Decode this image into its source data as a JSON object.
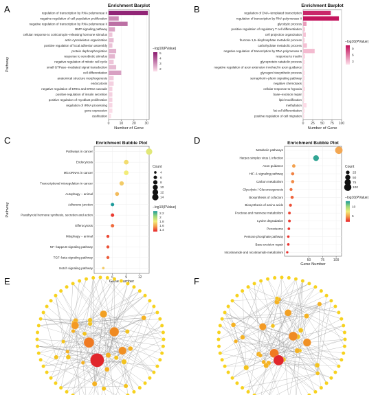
{
  "figure": {
    "panel_letters": [
      "A",
      "B",
      "C",
      "D",
      "E",
      "F"
    ]
  },
  "chart_data": [
    {
      "panel": "A",
      "type": "bar",
      "title": "Enrichment Barplot",
      "xlabel": "Number of Gene",
      "ylabel": "Pathway",
      "xlim": [
        0,
        32
      ],
      "xticks": [
        0,
        10,
        20,
        30
      ],
      "legend_title": "−log10(PValue)",
      "legend_ticks": [
        5,
        4,
        3,
        2
      ],
      "legend_range": [
        1.5,
        5.2
      ],
      "colors": {
        "low": "#fde0ea",
        "high": "#8b1a6f"
      },
      "categories": [
        "regulation of transcription by RNA polymerase II",
        "negative regulation of cell population proliferation",
        "negative regulation of transcription by RNA polymerase II",
        "BMP signaling pathway",
        "cellular response to corticotropin−releasing hormone stimulus",
        "actin cytoskeleton organization",
        "positive regulation of focal adhesion assembly",
        "protein dephosphorylation",
        "response to xenobiotic stimulus",
        "negative regulation of mitotic cell cycle",
        "small GTPase−mediated signal transduction",
        "cell differentiation",
        "anatomical structure morphogenesis",
        "endocytosis",
        "negative regulation of ERK1 and ERK2 cascade",
        "positive regulation of insulin secretion",
        "positive regulation of myoblast proliferation",
        "regulation of rRNA processing",
        "gene expression",
        "ossification"
      ],
      "values": [
        31,
        8,
        15,
        5,
        3,
        4,
        3,
        6,
        5,
        4,
        6,
        10,
        4,
        4,
        3,
        3,
        3,
        3,
        3,
        2
      ],
      "color_values": [
        5.0,
        3.1,
        3.6,
        2.6,
        2.0,
        2.2,
        2.1,
        2.4,
        2.3,
        2.0,
        2.2,
        2.7,
        1.9,
        1.8,
        1.8,
        1.8,
        1.8,
        1.7,
        1.6,
        1.5
      ]
    },
    {
      "panel": "B",
      "type": "bar",
      "title": "Enrichment Barplot",
      "xlabel": "Number of Gene",
      "ylabel": "",
      "xlim": [
        0,
        100
      ],
      "xticks": [
        0,
        25,
        50,
        75,
        100
      ],
      "legend_title": "−log10(PValue)",
      "legend_ticks": [
        9,
        6,
        3
      ],
      "legend_range": [
        1.5,
        10.5
      ],
      "colors": {
        "low": "#fde0ea",
        "high": "#c2105a"
      },
      "categories": [
        "regulation of DNA−templated transcription",
        "regulation of transcription by RNA polymerase II",
        "glycolytic process",
        "positive regulation of regulatory T cell differentiation",
        "cell projection organization",
        "fructose 1,6−bisphosphate metabolic process",
        "carbohydrate metabolic process",
        "negative regulation of transcription by RNA polymerase II",
        "response to insulin",
        "glycoprotein catabolic process",
        "negative regulation of axon extension involved in axon guidance",
        "glycogen biosynthetic process",
        "semaphorin−plexin signaling pathway",
        "negative chemotaxis",
        "cellular response to hypoxia",
        "base−excision repair",
        "lipid modification",
        "methylation",
        "fat cell differentiation",
        "positive regulation of cell migration"
      ],
      "values": [
        72,
        93,
        9,
        5,
        7,
        4,
        10,
        30,
        5,
        4,
        3,
        4,
        4,
        3,
        5,
        3,
        3,
        9,
        4,
        3
      ],
      "color_values": [
        9.5,
        10.3,
        4.5,
        2.6,
        2.8,
        2.4,
        2.9,
        3.1,
        2.0,
        2.0,
        1.9,
        1.9,
        1.9,
        1.8,
        1.8,
        1.8,
        1.7,
        1.7,
        1.6,
        1.6
      ]
    },
    {
      "panel": "C",
      "type": "scatter",
      "title": "Enrichment Bubble Plot",
      "xlabel": "Gene Number",
      "ylabel": "Pathway",
      "xlim": [
        2,
        14
      ],
      "xticks": [
        6,
        9,
        12
      ],
      "size_legend_title": "Count",
      "size_legend_values": [
        4,
        6,
        8,
        10,
        12,
        14
      ],
      "size_range": [
        3,
        15
      ],
      "color_legend_title": "−log10(PValue)",
      "color_legend_ticks": [
        2.2,
        2.0,
        1.8,
        1.6,
        1.4
      ],
      "color_range": [
        1.3,
        2.3
      ],
      "categories": [
        "Pathways in cancer",
        "Endocytosis",
        "MicroRNAs in cancer",
        "Transcriptional misregulation in cancer",
        "Autophagy − animal",
        "Adherens junction",
        "Parathyroid hormone synthesis, secretion and action",
        "Efferocytosis",
        "Mitophagy − animal",
        "NF−kappa B signaling pathway",
        "TGF−beta signaling pathway",
        "Notch signaling pathway"
      ],
      "x": [
        14,
        9,
        9,
        8,
        7,
        6,
        6,
        6,
        5,
        5,
        5,
        4
      ],
      "color_values": [
        1.85,
        1.75,
        1.8,
        1.7,
        1.65,
        2.3,
        1.35,
        1.45,
        1.38,
        1.4,
        1.42,
        1.7
      ]
    },
    {
      "panel": "D",
      "type": "scatter",
      "title": "Enrichment Bubble Plot",
      "xlabel": "Gene Number",
      "ylabel": "",
      "xlim": [
        5,
        110
      ],
      "xticks": [
        50,
        75,
        100
      ],
      "size_legend_title": "Count",
      "size_legend_values": [
        25,
        50,
        75,
        100
      ],
      "size_range": [
        3,
        105
      ],
      "color_legend_title": "−log10(PValue)",
      "color_legend_ticks": [
        10,
        5
      ],
      "color_range": [
        2,
        13
      ],
      "categories": [
        "Metabolic pathways",
        "Herpes simplex virus 1 infection",
        "Axon guidance",
        "HIF−1 signaling pathway",
        "Carbon metabolism",
        "Glycolysis / Gluconeogenesis",
        "Biosynthesis of cofactors",
        "Biosynthesis of amino acids",
        "Fructose and mannose metabolism",
        "Lysine degradation",
        "Peroxisome",
        "Pentose phosphate pathway",
        "Base excision repair",
        "Nicotinamide and nicotinamide metabolism"
      ],
      "x": [
        105,
        63,
        22,
        20,
        20,
        17,
        19,
        16,
        14,
        14,
        13,
        12,
        12,
        10
      ],
      "color_values": [
        5.2,
        12.5,
        5.0,
        4.2,
        4.4,
        3.8,
        3.5,
        3.0,
        2.8,
        2.6,
        2.5,
        2.5,
        2.4,
        2.3
      ]
    }
  ]
}
